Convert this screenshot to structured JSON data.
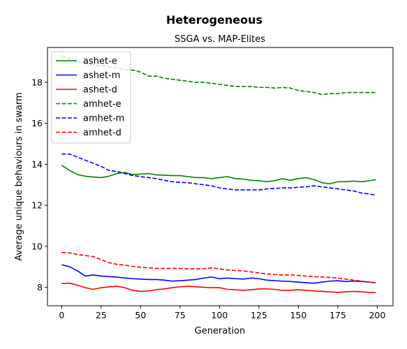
{
  "chart_data": {
    "type": "line",
    "suptitle": "Heterogeneous",
    "title": "SSGA vs. MAP-Elites",
    "xlabel": "Generation",
    "ylabel": "Average unique behaviours in swarm",
    "xlim": [
      -9,
      210
    ],
    "ylim": [
      7.1,
      19.7
    ],
    "xticks": [
      0,
      25,
      50,
      75,
      100,
      125,
      150,
      175,
      200
    ],
    "yticks": [
      8,
      10,
      12,
      14,
      16,
      18
    ],
    "legend_position": "upper-left",
    "series": [
      {
        "name": "ashet-e",
        "color": "#008000",
        "style": "solid",
        "x": [
          0,
          5,
          10,
          15,
          20,
          25,
          30,
          35,
          40,
          45,
          50,
          55,
          60,
          65,
          70,
          75,
          80,
          85,
          90,
          95,
          100,
          105,
          110,
          115,
          120,
          125,
          130,
          135,
          140,
          145,
          150,
          155,
          160,
          165,
          170,
          175,
          180,
          185,
          190,
          195,
          199
        ],
        "y": [
          13.95,
          13.7,
          13.5,
          13.42,
          13.38,
          13.35,
          13.42,
          13.55,
          13.6,
          13.5,
          13.52,
          13.55,
          13.48,
          13.47,
          13.45,
          13.45,
          13.4,
          13.35,
          13.35,
          13.3,
          13.35,
          13.4,
          13.3,
          13.28,
          13.22,
          13.2,
          13.15,
          13.2,
          13.3,
          13.22,
          13.3,
          13.35,
          13.25,
          13.1,
          13.05,
          13.15,
          13.15,
          13.18,
          13.15,
          13.2,
          13.25
        ]
      },
      {
        "name": "ashet-m",
        "color": "#0000ff",
        "style": "solid",
        "x": [
          0,
          5,
          10,
          15,
          20,
          25,
          30,
          35,
          40,
          45,
          50,
          55,
          60,
          65,
          70,
          75,
          80,
          85,
          90,
          95,
          100,
          105,
          110,
          115,
          120,
          125,
          130,
          135,
          140,
          145,
          150,
          155,
          160,
          165,
          170,
          175,
          180,
          185,
          190,
          195,
          199
        ],
        "y": [
          9.1,
          9.0,
          8.8,
          8.55,
          8.6,
          8.55,
          8.52,
          8.5,
          8.45,
          8.42,
          8.4,
          8.38,
          8.38,
          8.35,
          8.3,
          8.32,
          8.35,
          8.38,
          8.45,
          8.5,
          8.42,
          8.45,
          8.42,
          8.4,
          8.45,
          8.42,
          8.35,
          8.32,
          8.3,
          8.28,
          8.25,
          8.22,
          8.2,
          8.25,
          8.3,
          8.32,
          8.28,
          8.3,
          8.28,
          8.25,
          8.22
        ]
      },
      {
        "name": "ashet-d",
        "color": "#ff0000",
        "style": "solid",
        "x": [
          0,
          5,
          10,
          15,
          20,
          25,
          30,
          35,
          40,
          45,
          50,
          55,
          60,
          65,
          70,
          75,
          80,
          85,
          90,
          95,
          100,
          105,
          110,
          115,
          120,
          125,
          130,
          135,
          140,
          145,
          150,
          155,
          160,
          165,
          170,
          175,
          180,
          185,
          190,
          195,
          199
        ],
        "y": [
          8.18,
          8.2,
          8.1,
          7.98,
          7.9,
          7.98,
          8.02,
          8.05,
          7.98,
          7.85,
          7.8,
          7.82,
          7.88,
          7.92,
          7.98,
          8.02,
          8.05,
          8.02,
          8.0,
          7.98,
          7.98,
          7.9,
          7.88,
          7.85,
          7.88,
          7.92,
          7.92,
          7.9,
          7.85,
          7.85,
          7.88,
          7.85,
          7.82,
          7.8,
          7.78,
          7.75,
          7.78,
          7.8,
          7.78,
          7.75,
          7.75
        ]
      },
      {
        "name": "amhet-e",
        "color": "#008000",
        "style": "dashed",
        "x": [
          0,
          5,
          10,
          15,
          20,
          25,
          30,
          35,
          40,
          45,
          50,
          55,
          60,
          65,
          70,
          75,
          80,
          85,
          90,
          95,
          100,
          105,
          110,
          115,
          120,
          125,
          130,
          135,
          140,
          145,
          150,
          155,
          160,
          165,
          170,
          175,
          180,
          185,
          190,
          195,
          199
        ],
        "y": [
          19.3,
          19.15,
          19.0,
          18.95,
          18.85,
          18.8,
          18.75,
          18.7,
          18.6,
          18.6,
          18.5,
          18.3,
          18.3,
          18.2,
          18.15,
          18.1,
          18.05,
          18.0,
          18.0,
          17.95,
          17.9,
          17.85,
          17.8,
          17.8,
          17.8,
          17.75,
          17.75,
          17.72,
          17.75,
          17.72,
          17.6,
          17.55,
          17.5,
          17.4,
          17.45,
          17.45,
          17.5,
          17.5,
          17.5,
          17.5,
          17.5
        ]
      },
      {
        "name": "amhet-m",
        "color": "#0000ff",
        "style": "dashed",
        "x": [
          0,
          5,
          10,
          15,
          20,
          25,
          30,
          35,
          40,
          45,
          50,
          55,
          60,
          65,
          70,
          75,
          80,
          85,
          90,
          95,
          100,
          105,
          110,
          115,
          120,
          125,
          130,
          135,
          140,
          145,
          150,
          155,
          160,
          165,
          170,
          175,
          180,
          185,
          190,
          195,
          199
        ],
        "y": [
          14.5,
          14.5,
          14.35,
          14.2,
          14.05,
          13.9,
          13.7,
          13.65,
          13.55,
          13.45,
          13.4,
          13.35,
          13.3,
          13.22,
          13.15,
          13.12,
          13.1,
          13.05,
          13.0,
          12.95,
          12.85,
          12.8,
          12.75,
          12.75,
          12.75,
          12.75,
          12.8,
          12.82,
          12.85,
          12.85,
          12.88,
          12.9,
          12.95,
          12.9,
          12.85,
          12.8,
          12.75,
          12.7,
          12.6,
          12.55,
          12.5
        ]
      },
      {
        "name": "amhet-d",
        "color": "#ff0000",
        "style": "dashed",
        "x": [
          0,
          5,
          10,
          15,
          20,
          25,
          30,
          35,
          40,
          45,
          50,
          55,
          60,
          65,
          70,
          75,
          80,
          85,
          90,
          95,
          100,
          105,
          110,
          115,
          120,
          125,
          130,
          135,
          140,
          145,
          150,
          155,
          160,
          165,
          170,
          175,
          180,
          185,
          190,
          195,
          199
        ],
        "y": [
          9.7,
          9.68,
          9.6,
          9.55,
          9.5,
          9.35,
          9.2,
          9.12,
          9.08,
          9.02,
          8.98,
          8.95,
          8.92,
          8.92,
          8.92,
          8.92,
          8.9,
          8.9,
          8.9,
          8.95,
          8.9,
          8.85,
          8.82,
          8.8,
          8.75,
          8.7,
          8.65,
          8.62,
          8.6,
          8.6,
          8.58,
          8.55,
          8.52,
          8.5,
          8.48,
          8.45,
          8.4,
          8.35,
          8.3,
          8.25,
          8.22
        ]
      }
    ]
  }
}
